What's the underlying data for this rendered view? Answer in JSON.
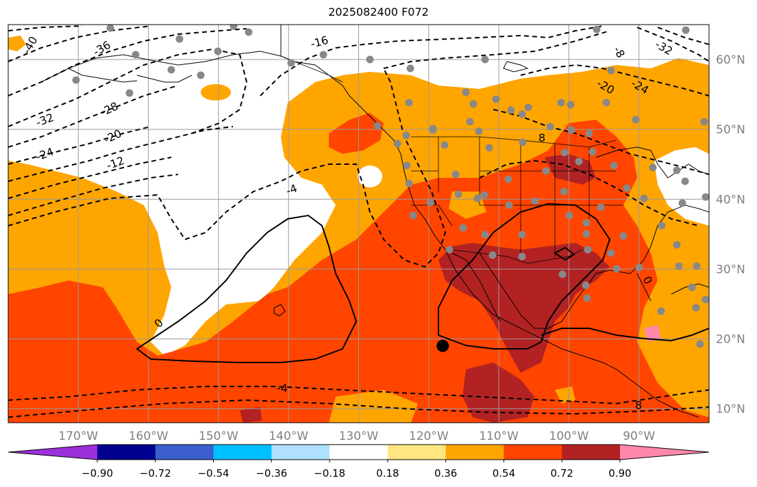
{
  "title": "2025082400 F072",
  "lon_labels": [
    "170°W",
    "160°W",
    "150°W",
    "140°W",
    "130°W",
    "120°W",
    "110°W",
    "100°W",
    "90°W"
  ],
  "lon_values": [
    -170,
    -160,
    -150,
    -140,
    -130,
    -120,
    -110,
    -100,
    -90
  ],
  "lat_labels": [
    "60°N",
    "50°N",
    "40°N",
    "30°N",
    "20°N",
    "10°N"
  ],
  "lat_values": [
    60,
    50,
    40,
    30,
    20,
    10
  ],
  "extent": {
    "lon_min": -180,
    "lon_max": -80,
    "lat_min": 8,
    "lat_max": 65
  },
  "contour_labels": [
    "-40",
    "-36",
    "-32",
    "-28",
    "-24",
    "-20",
    "-16",
    "-12",
    "-4",
    "0",
    "-4",
    "8",
    "8",
    "-24",
    "-20",
    "-32",
    "-8",
    "0"
  ],
  "colorbar": {
    "ticks": [
      "−0.90",
      "−0.72",
      "−0.54",
      "−0.36",
      "−0.18",
      "0.18",
      "0.36",
      "0.54",
      "0.72",
      "0.90"
    ],
    "colors": [
      "#9b30d9",
      "#000090",
      "#3a5ecc",
      "#00bfff",
      "#b0e0ff",
      "#ffffff",
      "#ffe680",
      "#ffa500",
      "#ff4500",
      "#b22222",
      "#ff88aa"
    ]
  },
  "marker": {
    "lon": -118,
    "lat": 19
  }
}
